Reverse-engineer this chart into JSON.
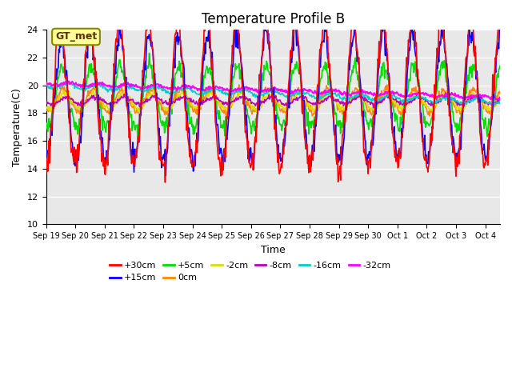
{
  "title": "Temperature Profile B",
  "xlabel": "Time",
  "ylabel": "Temperature(C)",
  "ylim": [
    10,
    24
  ],
  "yticks": [
    10,
    12,
    14,
    16,
    18,
    20,
    22,
    24
  ],
  "n_days": 15.5,
  "n_points": 744,
  "series_order": [
    "+30cm",
    "+15cm",
    "+5cm",
    "0cm",
    "-2cm",
    "-8cm",
    "-16cm",
    "-32cm"
  ],
  "series": {
    "+30cm": {
      "color": "#ff0000",
      "lw": 1.2,
      "zorder": 5
    },
    "+15cm": {
      "color": "#0000ff",
      "lw": 1.2,
      "zorder": 4
    },
    "+5cm": {
      "color": "#00dd00",
      "lw": 1.2,
      "zorder": 3
    },
    "0cm": {
      "color": "#ff8800",
      "lw": 1.2,
      "zorder": 3
    },
    "-2cm": {
      "color": "#dddd00",
      "lw": 1.2,
      "zorder": 3
    },
    "-8cm": {
      "color": "#bb00bb",
      "lw": 1.2,
      "zorder": 3
    },
    "-16cm": {
      "color": "#00cccc",
      "lw": 1.2,
      "zorder": 3
    },
    "-32cm": {
      "color": "#ff00ff",
      "lw": 1.5,
      "zorder": 3
    }
  },
  "xtick_labels": [
    "Sep 19",
    "Sep 20",
    "Sep 21",
    "Sep 22",
    "Sep 23",
    "Sep 24",
    "Sep 25",
    "Sep 26",
    "Sep 27",
    "Sep 28",
    "Sep 29",
    "Sep 30",
    "Oct 1",
    "Oct 2",
    "Oct 3",
    "Oct 4"
  ],
  "legend_box_label": "GT_met",
  "legend_box_color": "#ffff99",
  "legend_box_edgecolor": "#888800",
  "background_color": "#e8e8e8",
  "title_fontsize": 12,
  "axis_fontsize": 9,
  "tick_fontsize": 8,
  "legend_fontsize": 8
}
